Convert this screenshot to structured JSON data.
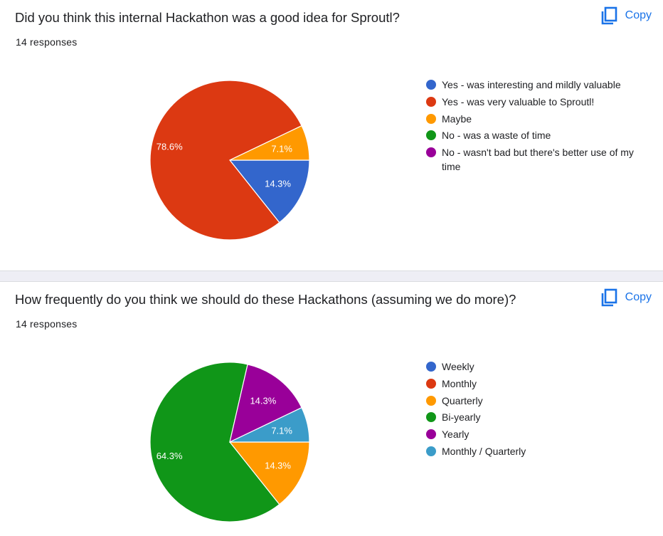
{
  "charts": [
    {
      "title": "Did you think this internal Hackathon was a good idea for Sproutl?",
      "responses": "14 responses",
      "copy_label": "Copy"
    },
    {
      "title": "How frequently do you think we should do these Hackathons (assuming we do more)?",
      "responses": "14 responses",
      "copy_label": "Copy"
    }
  ],
  "icons": {
    "copy": "copy-icon"
  },
  "chart_data": [
    {
      "type": "pie",
      "title": "Did you think this internal Hackathon was a good idea for Sproutl?",
      "legend_position": "right",
      "slices": [
        {
          "label": "Yes - was interesting and mildly valuable",
          "value": 14.3,
          "display": "14.3%",
          "color": "#3366cc"
        },
        {
          "label": "Yes - was very valuable to Sproutl!",
          "value": 78.6,
          "display": "78.6%",
          "color": "#dc3912"
        },
        {
          "label": "Maybe",
          "value": 7.1,
          "display": "7.1%",
          "color": "#ff9900"
        },
        {
          "label": "No - was a waste of time",
          "value": 0,
          "display": "",
          "color": "#109618"
        },
        {
          "label": "No - wasn't bad but there's better use of my time",
          "value": 0,
          "display": "",
          "color": "#990099"
        }
      ]
    },
    {
      "type": "pie",
      "title": "How frequently do you think we should do these Hackathons (assuming we do more)?",
      "legend_position": "right",
      "slices": [
        {
          "label": "Weekly",
          "value": 0,
          "display": "",
          "color": "#3366cc"
        },
        {
          "label": "Monthly",
          "value": 0,
          "display": "",
          "color": "#dc3912"
        },
        {
          "label": "Quarterly",
          "value": 14.3,
          "display": "14.3%",
          "color": "#ff9900"
        },
        {
          "label": "Bi-yearly",
          "value": 64.3,
          "display": "64.3%",
          "color": "#109618"
        },
        {
          "label": "Yearly",
          "value": 14.3,
          "display": "14.3%",
          "color": "#990099"
        },
        {
          "label": "Monthly / Quarterly",
          "value": 7.1,
          "display": "7.1%",
          "color": "#3b9cc9"
        }
      ]
    }
  ]
}
